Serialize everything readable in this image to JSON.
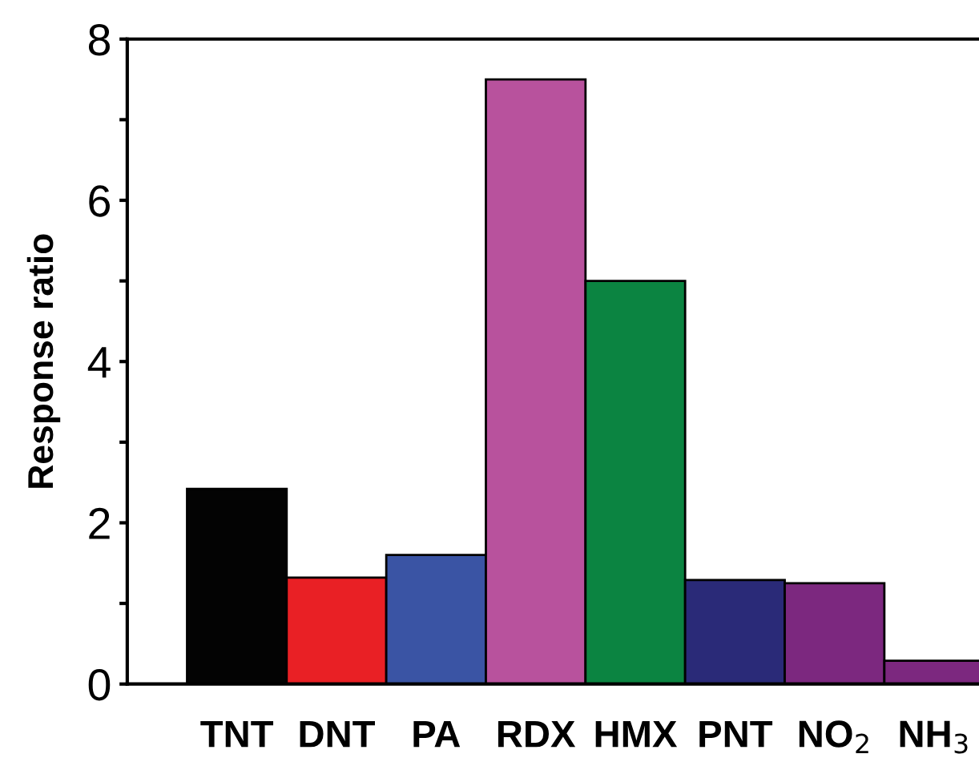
{
  "chart_data": {
    "type": "bar",
    "ylabel": "Response ratio",
    "categories": [
      "TNT",
      "DNT",
      "PA",
      "RDX",
      "HMX",
      "PNT",
      "NO$_{2}$",
      "NH$_{3}$"
    ],
    "values": [
      2.42,
      1.32,
      1.6,
      7.5,
      5.0,
      1.29,
      1.25,
      0.29
    ],
    "colors": [
      "#030303",
      "#e92025",
      "#3a54a4",
      "#b8529d",
      "#0b8441",
      "#2a2a78",
      "#7c287f",
      "#7c287f"
    ],
    "ylim": [
      0,
      8
    ],
    "yticks": [
      0,
      {
        "value": 1,
        "label": null
      },
      2,
      {
        "value": 3,
        "label": null
      },
      4,
      {
        "value": 5,
        "label": null
      },
      6,
      {
        "value": 7,
        "label": null
      },
      8
    ],
    "grid": false,
    "legend": false
  }
}
